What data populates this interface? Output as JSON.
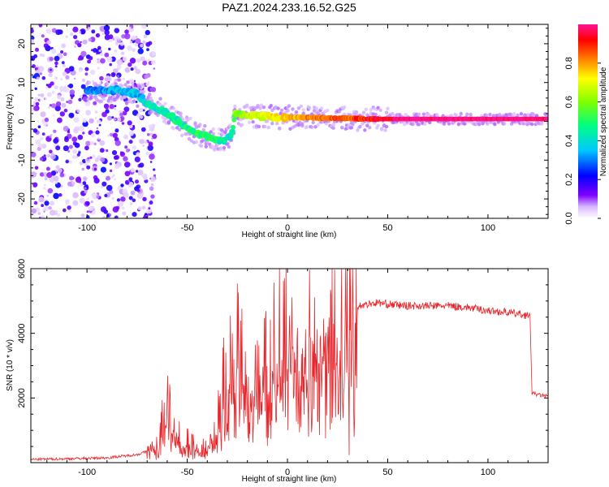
{
  "figure_title": "PAZ1.2024.233.16.52.G25",
  "chart_data": [
    {
      "type": "heatmap",
      "title": "PAZ1.2024.233.16.52.G25",
      "xlabel": "Height of straight line (km)",
      "ylabel": "Frequency (Hz)",
      "xlim": [
        -128,
        130
      ],
      "ylim": [
        -25,
        25
      ],
      "xticks": [
        -100,
        -50,
        0,
        50,
        100
      ],
      "yticks": [
        -20,
        -10,
        0,
        10,
        20
      ],
      "colorbar": {
        "label": "Normalized spectral amplitude",
        "range": [
          0,
          1
        ],
        "ticks": [
          "0.0",
          "0.2",
          "0.4",
          "0.6",
          "0.8"
        ],
        "colors": [
          "#ffffff",
          "#7f00ff",
          "#0000ff",
          "#00c8ff",
          "#00ff80",
          "#80ff00",
          "#ffff00",
          "#ff8000",
          "#ff0000",
          "#ff1493"
        ]
      },
      "ridge": {
        "x": [
          -95,
          -85,
          -75,
          -68,
          -60,
          -52,
          -45,
          -38,
          -32,
          -28,
          -26,
          -20,
          -10,
          0,
          10,
          20,
          30,
          40,
          50,
          60,
          80,
          100,
          130
        ],
        "frequency_hz": [
          8,
          8,
          7,
          4,
          2,
          -1,
          -3,
          -4.5,
          -5,
          -3.5,
          2,
          1.5,
          1.2,
          1,
          1,
          0.8,
          0.8,
          0.6,
          0.6,
          0.6,
          0.6,
          0.6,
          0.6
        ],
        "amplitude": [
          0.3,
          0.35,
          0.35,
          0.4,
          0.45,
          0.45,
          0.5,
          0.5,
          0.45,
          0.4,
          0.6,
          0.65,
          0.7,
          0.75,
          0.8,
          0.85,
          0.85,
          0.9,
          0.95,
          1,
          1,
          1,
          1
        ]
      },
      "noise_region_x": [
        -128,
        -70
      ]
    },
    {
      "type": "line",
      "xlabel": "Height of straight line (km)",
      "ylabel": "SNR (10 * v/v)",
      "xlim": [
        -128,
        130
      ],
      "ylim": [
        0,
        6000
      ],
      "xticks": [
        -100,
        -50,
        0,
        50,
        100
      ],
      "yticks": [
        2000,
        4000,
        6000
      ],
      "color": "#e8272c",
      "series": [
        {
          "x": [
            -128,
            -110,
            -90,
            -75,
            -70,
            -65,
            -62,
            -60,
            -58,
            -55,
            -50,
            -45,
            -40,
            -35,
            -30,
            -27,
            -25,
            -22,
            -20,
            -15,
            -10,
            -5,
            0,
            5,
            10,
            15,
            20,
            25,
            30,
            35,
            40,
            45,
            50,
            60,
            70,
            80,
            90,
            100,
            110,
            115,
            120,
            121,
            122,
            125,
            130
          ],
          "y": [
            100,
            120,
            150,
            250,
            350,
            600,
            1200,
            1900,
            1300,
            700,
            650,
            450,
            500,
            1200,
            2600,
            3200,
            3600,
            2700,
            2400,
            2400,
            2800,
            3300,
            3600,
            3700,
            3900,
            4000,
            4200,
            4500,
            4700,
            4850,
            4900,
            4950,
            4900,
            4850,
            4850,
            4850,
            4800,
            4700,
            4650,
            4600,
            4550,
            4500,
            2150,
            2100,
            2050
          ]
        }
      ]
    }
  ]
}
